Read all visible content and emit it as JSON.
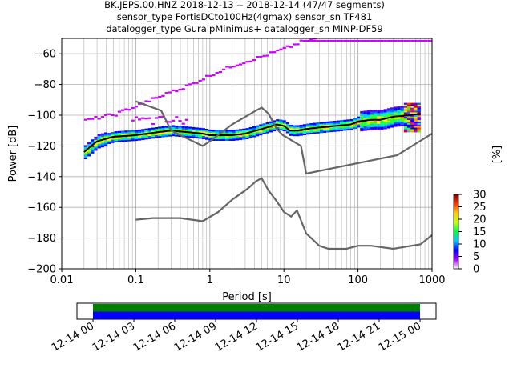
{
  "title": {
    "line1": "BK.JEPS.00.HNZ   2018-12-13 -- 2018-12-14  (47/47 segments)",
    "line2": "sensor_type FortisDCto100Hz(4gmax) sensor_sn TF481",
    "line3": "datalogger_type GuralpMinimus+ datalogger_sn MINP-DF59"
  },
  "chart_data": [
    {
      "type": "heatmap",
      "xlabel": "Period [s]",
      "ylabel": "Power [dB]",
      "xscale": "log",
      "xlim": [
        0.01,
        1000
      ],
      "ylim": [
        -200,
        -50
      ],
      "xticks": [
        0.01,
        0.1,
        1,
        10,
        100,
        1000
      ],
      "xtick_labels": [
        "0.01",
        "0.1",
        "1",
        "10",
        "100",
        "1000"
      ],
      "yticks": [
        -200,
        -180,
        -160,
        -140,
        -120,
        -100,
        -80,
        -60
      ],
      "ytick_labels": [
        "−200",
        "−180",
        "−160",
        "−140",
        "−120",
        "−100",
        "−80",
        "−60"
      ],
      "grid": true,
      "colorbar": {
        "label": "[%]",
        "ticks": [
          0,
          5,
          10,
          15,
          20,
          25,
          30
        ],
        "tick_labels": [
          "0",
          "5",
          "10",
          "15",
          "20",
          "25",
          "30"
        ],
        "range": [
          0,
          30
        ],
        "colormap": [
          "#ffffff",
          "#aa00ff",
          "#0000ff",
          "#00c8ff",
          "#00ff40",
          "#c8ff00",
          "#ffcc00",
          "#ff3300",
          "#800000"
        ]
      },
      "series": [
        {
          "type": "line",
          "color": "#000000",
          "x": [
            0.02,
            0.025,
            0.03,
            0.05,
            0.1,
            0.2,
            0.3,
            0.5,
            0.8,
            1,
            2,
            3,
            5,
            8,
            10,
            12,
            15,
            20,
            30,
            50,
            80,
            100,
            150,
            200,
            300,
            500,
            700
          ],
          "y": [
            -124,
            -120,
            -117,
            -114,
            -113,
            -111,
            -110,
            -111,
            -112,
            -113,
            -113,
            -112,
            -109,
            -106,
            -107,
            -110,
            -110,
            -109,
            -108,
            -107,
            -106,
            -104,
            -103,
            -103,
            -101,
            -100,
            -99
          ]
        },
        {
          "type": "line",
          "color": "#666666",
          "x": [
            0.1,
            0.22,
            0.3,
            0.4,
            0.8,
            1,
            2,
            4.2,
            5,
            6.2,
            8,
            9.7,
            17,
            20,
            340,
            1000
          ],
          "y": [
            -91,
            -97,
            -110,
            -113,
            -120,
            -117,
            -106,
            -97,
            -95,
            -99,
            -109,
            -113,
            -120,
            -138,
            -126,
            -112
          ]
        },
        {
          "type": "line",
          "color": "#666666",
          "x": [
            0.1,
            0.17,
            0.4,
            0.8,
            1.3,
            2,
            3.2,
            4.2,
            5,
            6.2,
            8,
            10,
            12.5,
            15,
            20,
            30,
            40,
            50,
            70,
            100,
            150,
            300,
            700,
            1000
          ],
          "y": [
            -168,
            -167,
            -167,
            -169,
            -163,
            -155,
            -148,
            -143,
            -141,
            -149,
            -156,
            -163,
            -166,
            -162,
            -177,
            -185,
            -187,
            -187,
            -187,
            -185,
            -185,
            -187,
            -184,
            -178
          ]
        },
        {
          "type": "scatter",
          "name": "",
          "color": "#cc00ff",
          "x": [
            0.02,
            0.03,
            0.05,
            0.1,
            0.2,
            0.3,
            0.5,
            1,
            2,
            5,
            10,
            20
          ],
          "y": [
            -103,
            -101,
            -99,
            -93,
            -87,
            -84,
            -80,
            -73,
            -67,
            -61,
            -56,
            -50
          ]
        }
      ]
    },
    {
      "type": "heatmap",
      "x_tick_labels": [
        "12-14 00",
        "12-14 03",
        "12-14 06",
        "12-14 09",
        "12-14 12",
        "12-14 15",
        "12-14 18",
        "12-14 21",
        "12-15 00"
      ],
      "rows": [
        {
          "color": "#008000",
          "coverage": [
            0.0,
            1.0
          ]
        },
        {
          "color": "#0000ff",
          "coverage": [
            0.0,
            1.0
          ]
        }
      ]
    }
  ]
}
